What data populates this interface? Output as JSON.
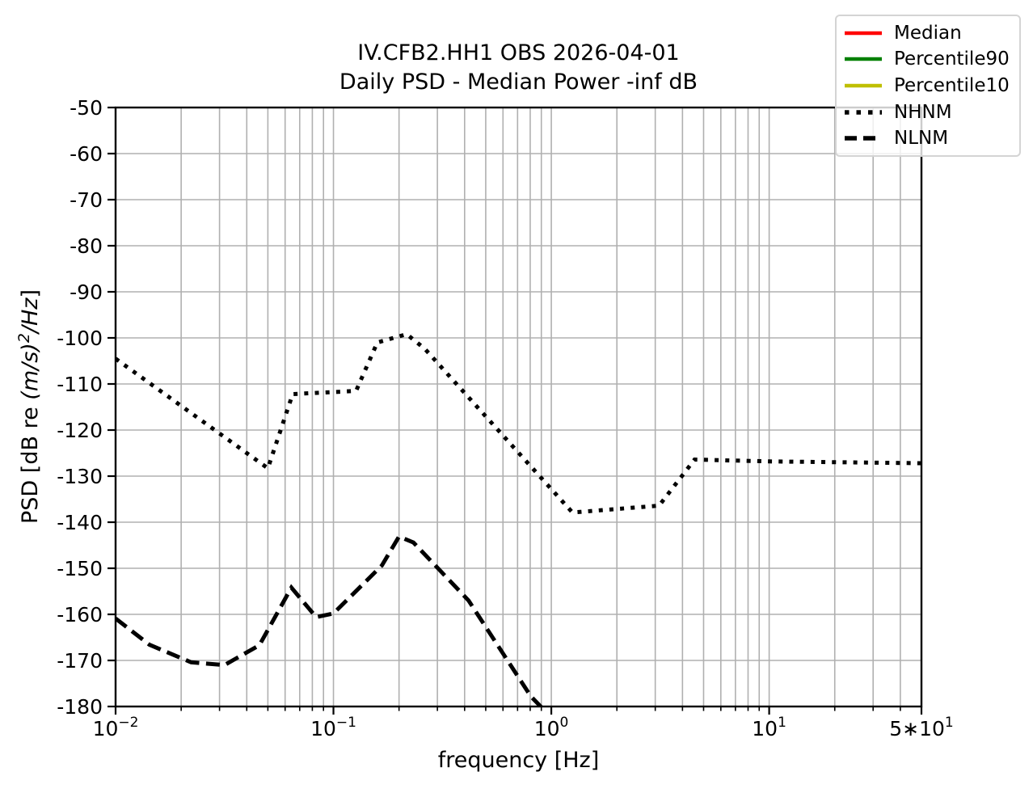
{
  "chart_data": {
    "type": "line",
    "title": "IV.CFB2.HH1 OBS 2026-04-01",
    "subtitle": "Daily PSD - Median Power -inf dB",
    "xlabel": "frequency [Hz]",
    "ylabel": {
      "pre": "PSD [dB re ",
      "math": "(m/s)",
      "sup": "2",
      "mid": "/Hz",
      "end": "]"
    },
    "x_scale": "log",
    "xlim": [
      0.01,
      50
    ],
    "ylim": [
      -180,
      -50
    ],
    "grid": true,
    "legend_position": "upper right",
    "colors": {
      "grid": "#b0b0b0",
      "axes": "#000000",
      "text": "#000000"
    },
    "x_ticks": [
      {
        "value": 0.01,
        "pre": "",
        "base": "10",
        "exp": "−2",
        "label": "10^-2"
      },
      {
        "value": 0.1,
        "pre": "",
        "base": "10",
        "exp": "−1",
        "label": "10^-1"
      },
      {
        "value": 1,
        "pre": "",
        "base": "10",
        "exp": "0",
        "label": "10^0"
      },
      {
        "value": 10,
        "pre": "",
        "base": "10",
        "exp": "1",
        "label": "10^1"
      },
      {
        "value": 50,
        "pre": "5∗",
        "base": "10",
        "exp": "1",
        "label": "5*10^1"
      }
    ],
    "y_ticks": [
      -50,
      -60,
      -70,
      -80,
      -90,
      -100,
      -110,
      -120,
      -130,
      -140,
      -150,
      -160,
      -170,
      -180
    ],
    "series": [
      {
        "name": "Median",
        "color": "#ff0000",
        "style": "solid",
        "points": []
      },
      {
        "name": "Percentile90",
        "color": "#008000",
        "style": "solid",
        "points": []
      },
      {
        "name": "Percentile10",
        "color": "#bfbf00",
        "style": "solid",
        "points": []
      },
      {
        "name": "NHNM",
        "color": "#000000",
        "style": "dotted",
        "points": [
          [
            0.01,
            -104.5
          ],
          [
            0.05,
            -128.3
          ],
          [
            0.065,
            -112.2
          ],
          [
            0.127,
            -111.5
          ],
          [
            0.159,
            -101.0
          ],
          [
            0.217,
            -99.2
          ],
          [
            0.263,
            -102.4
          ],
          [
            1.25,
            -137.9
          ],
          [
            3.125,
            -136.4
          ],
          [
            4.545,
            -126.4
          ],
          [
            10,
            -126.8
          ],
          [
            50,
            -127.2
          ]
        ]
      },
      {
        "name": "NLNM",
        "color": "#000000",
        "style": "dashed",
        "points": [
          [
            0.01,
            -160.9
          ],
          [
            0.0143,
            -166.6
          ],
          [
            0.0222,
            -170.4
          ],
          [
            0.0316,
            -171.0
          ],
          [
            0.0457,
            -166.7
          ],
          [
            0.0641,
            -154.2
          ],
          [
            0.0833,
            -160.6
          ],
          [
            0.1,
            -159.8
          ],
          [
            0.1667,
            -149.4
          ],
          [
            0.2,
            -143.1
          ],
          [
            0.233,
            -144.4
          ],
          [
            0.417,
            -157.0
          ],
          [
            0.806,
            -177.8
          ],
          [
            1.25,
            -187.1
          ]
        ]
      }
    ]
  }
}
